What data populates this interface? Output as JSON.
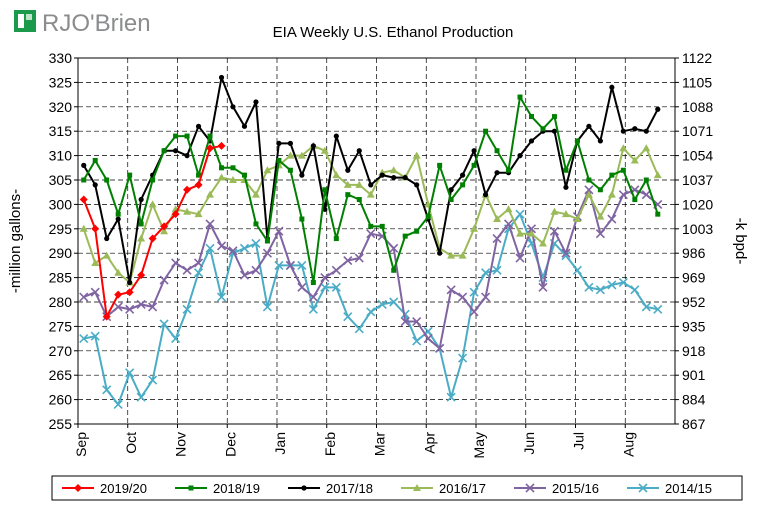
{
  "logo": {
    "text": "RJO'Brien"
  },
  "chart_data": {
    "type": "line",
    "title": "EIA Weekly U.S. Ethanol Production",
    "ylabel": "-million gallons-",
    "y2label": "-k bpd-",
    "ylim": [
      255,
      330
    ],
    "y_ticks": [
      "255",
      "260",
      "265",
      "270",
      "275",
      "280",
      "285",
      "290",
      "295",
      "300",
      "305",
      "310",
      "315",
      "320",
      "325",
      "330"
    ],
    "y2_ticks": [
      "867",
      "884",
      "901",
      "918",
      "935",
      "952",
      "969",
      "986",
      "1003",
      "1020",
      "1037",
      "1054",
      "1071",
      "1088",
      "1105",
      "1122"
    ],
    "x_month_labels": [
      "Sep",
      "Oct",
      "Nov",
      "Dec",
      "Jan",
      "Feb",
      "Mar",
      "Apr",
      "May",
      "Jun",
      "Jul",
      "Aug"
    ],
    "week_count": 52,
    "grid": true,
    "legend_position": "bottom",
    "series": [
      {
        "name": "2019/20",
        "color": "#ff0000",
        "marker": "diamond",
        "values": [
          301,
          295,
          277,
          281.5,
          282,
          285.5,
          293,
          295.5,
          298,
          303,
          304,
          311.5,
          312
        ]
      },
      {
        "name": "2018/19",
        "color": "#008000",
        "marker": "square",
        "values": [
          305,
          309,
          305,
          298,
          306,
          296,
          305,
          311,
          314,
          314,
          306,
          314,
          307.5,
          307.5,
          306,
          296,
          292.5,
          309,
          307,
          297,
          284,
          303,
          293,
          302,
          301,
          295.5,
          295.5,
          286.5,
          293.5,
          294.5,
          297.5,
          308,
          301,
          304,
          308,
          315,
          311,
          307,
          322,
          318,
          315.5,
          318,
          307,
          313,
          305,
          303,
          306,
          307,
          301,
          305,
          298
        ]
      },
      {
        "name": "2017/18",
        "color": "#000000",
        "marker": "circle",
        "values": [
          308,
          304,
          293,
          297,
          284,
          301,
          306,
          311,
          311,
          310,
          316,
          313,
          326,
          320,
          316,
          321,
          293,
          312.5,
          312.5,
          306,
          312,
          299,
          314,
          307,
          311,
          304,
          306,
          305.5,
          305.5,
          304,
          297,
          290,
          303,
          306,
          311,
          302,
          306.5,
          306.5,
          310,
          313,
          315,
          315,
          303.5,
          313,
          316,
          313,
          324,
          315,
          315.5,
          315,
          319.5
        ]
      },
      {
        "name": "2016/17",
        "color": "#9bbb59",
        "marker": "triangle",
        "values": [
          295,
          288,
          289.5,
          286,
          284,
          293,
          300,
          294.5,
          299,
          298.5,
          298,
          302,
          305.5,
          305,
          305,
          302,
          307,
          308,
          310,
          310,
          312,
          311,
          306,
          304,
          304,
          302,
          306.5,
          307,
          305.5,
          310,
          300,
          291,
          289.5,
          289.5,
          295,
          302,
          297,
          299,
          294,
          294,
          292,
          298.5,
          298,
          297,
          302,
          297.5,
          302,
          311.5,
          309,
          311.5,
          306
        ]
      },
      {
        "name": "2015/16",
        "color": "#8064a2",
        "marker": "x",
        "values": [
          281,
          282,
          277,
          279,
          278.5,
          279.5,
          279,
          284.5,
          288,
          286.5,
          288,
          296,
          291.5,
          290.5,
          285.5,
          286.5,
          290,
          294.5,
          287.5,
          283,
          281,
          285,
          286.5,
          288.5,
          289,
          294,
          293.5,
          291,
          276,
          276,
          272.5,
          270.5,
          282.5,
          281,
          278,
          281,
          293,
          296,
          289,
          295,
          283,
          294.5,
          290,
          297.5,
          303,
          294,
          297,
          302,
          303,
          302,
          300
        ]
      },
      {
        "name": "2014/15",
        "color": "#4bacc6",
        "marker": "x",
        "values": [
          272.5,
          273,
          262,
          259,
          265.5,
          260.5,
          264,
          275.5,
          272.5,
          278.5,
          286,
          291,
          281,
          290,
          291,
          292,
          279,
          287.5,
          287.5,
          287.5,
          278.5,
          283,
          283,
          277,
          274.5,
          278,
          279.5,
          280,
          277.5,
          272,
          274,
          270.5,
          260.5,
          268.5,
          282,
          286,
          286.5,
          295,
          298,
          292,
          285,
          292,
          289.5,
          286.5,
          283,
          282.5,
          283.5,
          284,
          282.5,
          279,
          278.5
        ]
      }
    ]
  }
}
